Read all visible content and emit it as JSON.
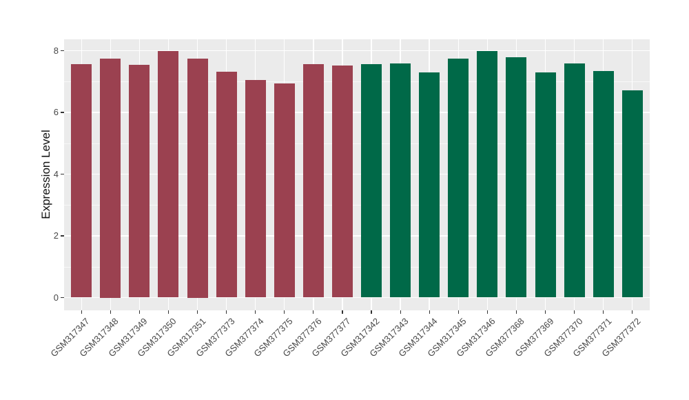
{
  "chart_data": {
    "type": "bar",
    "title": "",
    "xlabel": "",
    "ylabel": "Expression Level",
    "ylim": [
      0,
      8.4
    ],
    "yticks": [
      0,
      2,
      4,
      6,
      8
    ],
    "grid": true,
    "legend": false,
    "panel_background": "#EBEBEB",
    "grid_color": "#FFFFFF",
    "axis_text_color": "#474747",
    "tick_color": "#333333",
    "categories": [
      "GSM317347",
      "GSM317348",
      "GSM317349",
      "GSM317350",
      "GSM317351",
      "GSM377373",
      "GSM377374",
      "GSM377375",
      "GSM377376",
      "GSM377377",
      "GSM317342",
      "GSM317343",
      "GSM317344",
      "GSM317345",
      "GSM317346",
      "GSM377368",
      "GSM377369",
      "GSM377370",
      "GSM377371",
      "GSM377372"
    ],
    "values": [
      7.56,
      7.75,
      7.54,
      7.99,
      7.75,
      7.32,
      7.04,
      6.94,
      7.57,
      7.53,
      7.56,
      7.59,
      7.3,
      7.74,
      7.99,
      7.78,
      7.3,
      7.59,
      7.34,
      6.72
    ],
    "groups": [
      "group1",
      "group1",
      "group1",
      "group1",
      "group1",
      "group1",
      "group1",
      "group1",
      "group1",
      "group1",
      "group2",
      "group2",
      "group2",
      "group2",
      "group2",
      "group2",
      "group2",
      "group2",
      "group2",
      "group2"
    ],
    "group_colors": {
      "group1": "#9B4150",
      "group2": "#006948"
    }
  }
}
